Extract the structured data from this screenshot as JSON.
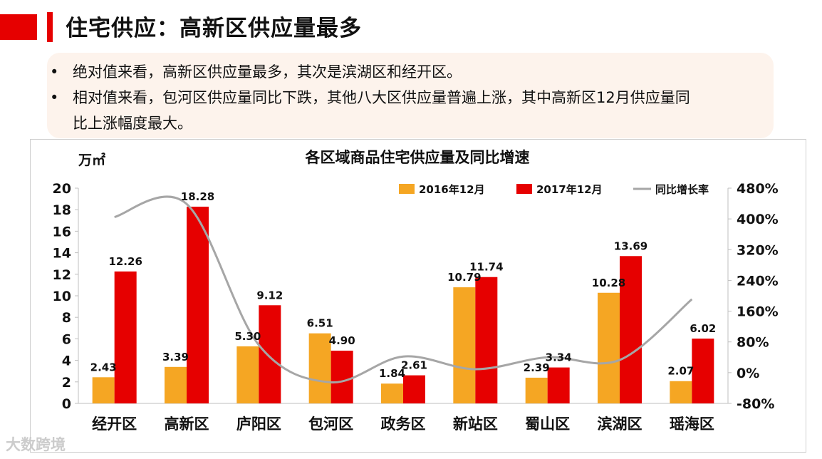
{
  "page": {
    "title": "住宅供应：高新区供应量最多",
    "bullets": [
      "绝对值来看，高新区供应量最多，其次是滨湖区和经开区。",
      "相对值来看，包河区供应量同比下跌，其他八大区供应量普遍上涨，其中高新区12月供应量同",
      "比上涨幅度最大。"
    ],
    "bullet_marker": "•",
    "watermark": "大数跨境"
  },
  "chart_data": {
    "type": "bar",
    "title": "各区域商品住宅供应量及同比增速",
    "ylabel": "万㎡",
    "ylim": [
      0,
      20
    ],
    "yticks": [
      "0",
      "2",
      "4",
      "6",
      "8",
      "10",
      "12",
      "14",
      "16",
      "18",
      "20"
    ],
    "y2lim": [
      -80,
      480
    ],
    "y2ticks": [
      "-80%",
      "0%",
      "80%",
      "160%",
      "240%",
      "320%",
      "400%",
      "480%"
    ],
    "categories": [
      "经开区",
      "高新区",
      "庐阳区",
      "包河区",
      "政务区",
      "新站区",
      "蜀山区",
      "滨湖区",
      "瑶海区"
    ],
    "series": [
      {
        "name": "2016年12月",
        "type": "bar",
        "color": "#f5a623",
        "values": [
          2.43,
          3.39,
          5.3,
          6.51,
          1.84,
          10.79,
          2.39,
          10.28,
          2.07
        ],
        "labels": [
          "2.43",
          "3.39",
          "5.30",
          "6.51",
          "1.84",
          "10.79",
          "2.39",
          "10.28",
          "2.07"
        ]
      },
      {
        "name": "2017年12月",
        "type": "bar",
        "color": "#e60000",
        "values": [
          12.26,
          18.28,
          9.12,
          4.9,
          2.61,
          11.74,
          3.34,
          13.69,
          6.02
        ],
        "labels": [
          "12.26",
          "18.28",
          "9.12",
          "4.90",
          "2.61",
          "11.74",
          "3.34",
          "13.69",
          "6.02"
        ]
      },
      {
        "name": "同比增长率",
        "type": "line",
        "axis": "right",
        "color": "#a6a6a6",
        "values": [
          405,
          439,
          72,
          -25,
          42,
          9,
          40,
          33,
          191
        ]
      }
    ]
  }
}
